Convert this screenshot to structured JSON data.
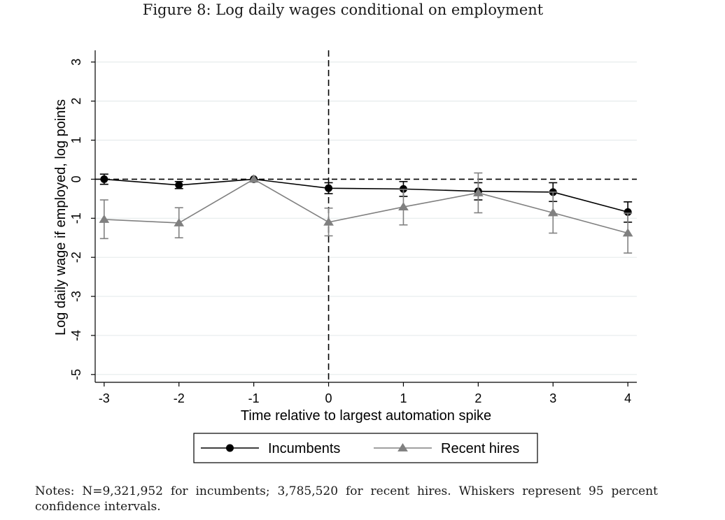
{
  "figure_title": "Figure 8: Log daily wages conditional on employment",
  "notes": "Notes: N=9,321,952 for incumbents; 3,785,520 for recent hires. Whiskers represent 95 percent confidence intervals.",
  "chart_data": {
    "type": "line",
    "title": "",
    "xlabel": "Time relative to largest automation spike",
    "ylabel": "Log daily wage if employed, log points",
    "x": [
      -3,
      -2,
      -1,
      0,
      1,
      2,
      3,
      4
    ],
    "xlim": [
      -3.12,
      4.12
    ],
    "ylim": [
      -5.2,
      3.3
    ],
    "xticks": [
      -3,
      -2,
      -1,
      0,
      1,
      2,
      3,
      4
    ],
    "yticks": [
      -5,
      -4,
      -3,
      -2,
      -1,
      0,
      1,
      2,
      3
    ],
    "grid": "horizontal",
    "reference_lines": {
      "x": 0,
      "y": 0,
      "style": "dashed"
    },
    "legend_position": "bottom",
    "series": [
      {
        "name": "Incumbents",
        "marker": "circle",
        "color": "#000000",
        "values": [
          0.0,
          -0.15,
          0.0,
          -0.23,
          -0.25,
          -0.31,
          -0.33,
          -0.84
        ],
        "ci_low": [
          -0.13,
          -0.24,
          0.0,
          -0.37,
          -0.44,
          -0.53,
          -0.57,
          -1.1
        ],
        "ci_high": [
          0.13,
          -0.06,
          0.0,
          -0.09,
          -0.06,
          -0.09,
          -0.09,
          -0.58
        ]
      },
      {
        "name": "Recent hires",
        "marker": "triangle",
        "color": "#808080",
        "values": [
          -1.03,
          -1.12,
          0.0,
          -1.1,
          -0.71,
          -0.35,
          -0.86,
          -1.38
        ],
        "ci_low": [
          -1.52,
          -1.5,
          0.0,
          -1.45,
          -1.17,
          -0.86,
          -1.38,
          -1.89
        ],
        "ci_high": [
          -0.53,
          -0.73,
          0.0,
          -0.74,
          -0.26,
          0.16,
          -0.33,
          -0.87
        ]
      }
    ]
  }
}
